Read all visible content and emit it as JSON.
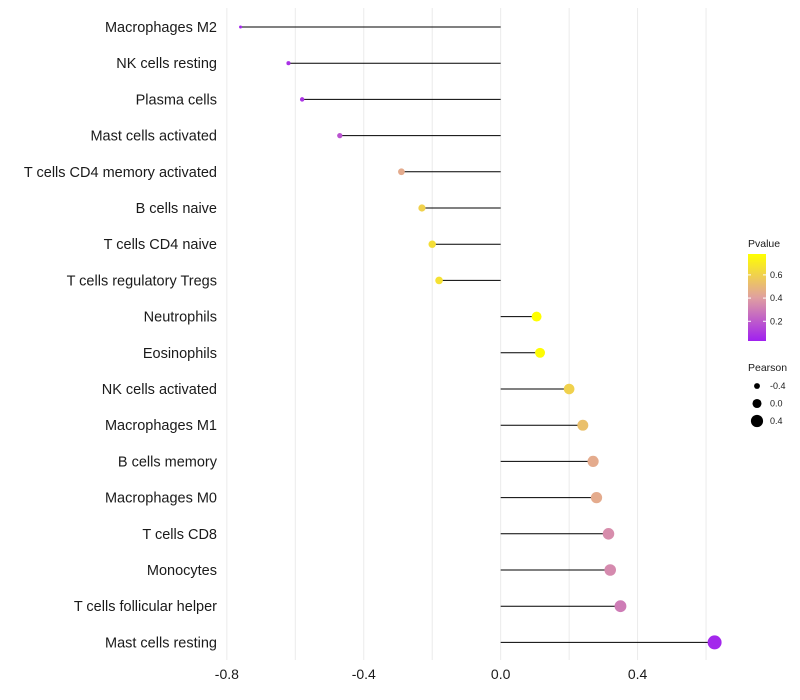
{
  "chart_data": {
    "type": "lollipop",
    "categories": [
      "Macrophages M2",
      "NK cells resting",
      "Plasma cells",
      "Mast cells activated",
      "T cells CD4 memory activated",
      "B cells naive",
      "T cells CD4 naive",
      "T cells regulatory  Tregs",
      "Neutrophils",
      "Eosinophils",
      "NK cells activated",
      "Macrophages M1",
      "B cells memory",
      "Macrophages M0",
      "T cells CD8",
      "Monocytes",
      "T cells follicular helper",
      "Mast cells resting"
    ],
    "pearson": [
      -0.76,
      -0.62,
      -0.58,
      -0.47,
      -0.29,
      -0.23,
      -0.2,
      -0.18,
      0.105,
      0.115,
      0.2,
      0.24,
      0.27,
      0.28,
      0.315,
      0.32,
      0.35,
      0.625
    ],
    "pvalue": [
      0.05,
      0.08,
      0.09,
      0.18,
      0.45,
      0.6,
      0.65,
      0.66,
      0.78,
      0.77,
      0.6,
      0.53,
      0.45,
      0.45,
      0.35,
      0.34,
      0.3,
      0.05
    ],
    "xlim": [
      -0.82,
      0.67
    ],
    "x_ticks": [
      -0.8,
      -0.4,
      0.0,
      0.4
    ],
    "x_tick_labels": [
      "-0.8",
      "-0.4",
      "0.0",
      "0.4"
    ],
    "xlabel": "",
    "ylabel": "",
    "colorbar": {
      "title": "Pvalue",
      "range": [
        0.03,
        0.78
      ],
      "ticks": [
        0.2,
        0.4,
        0.6
      ],
      "tick_labels": [
        "0.2",
        "0.4",
        "0.6"
      ],
      "low_color": "#a020f0",
      "high_color": "#ffff00"
    },
    "size_legend": {
      "title": "Pearson",
      "values": [
        -0.4,
        0.0,
        0.4
      ],
      "labels": [
        "-0.4",
        "0.0",
        "0.4"
      ]
    },
    "legend_position": "right"
  }
}
